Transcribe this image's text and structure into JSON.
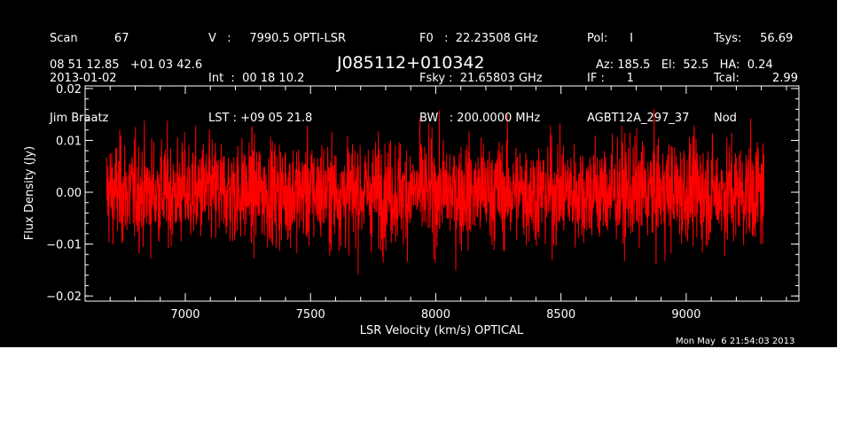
{
  "header": {
    "col1": [
      "Scan          67",
      "2013-01-02",
      "Jim Braatz"
    ],
    "col2": [
      "V   :     7990.5 OPTI-LSR",
      "Int  :  00 18 10.2",
      "LST : +09 05 21.8"
    ],
    "col3": [
      "F0   :  22.23508 GHz",
      "Fsky :  21.65803 GHz",
      "BW   : 200.0000 MHz"
    ],
    "col4": [
      "Pol:      I",
      "IF :      1",
      "AGBT12A_297_37"
    ],
    "col5": [
      "Tsys:     56.69",
      "Tcal:         2.99",
      "Nod"
    ],
    "coords": "08 51 12.85   +01 03 42.6",
    "source": "J085112+010342",
    "pointing": "Az: 185.5   El:  52.5   HA:  0.24"
  },
  "timestamp": "Mon May  6 21:54:03 2013",
  "colors": {
    "background": "#000000",
    "axes": "#ffffff",
    "trace": "#ff0000"
  },
  "chart_data": {
    "type": "line",
    "title": "J085112+010342",
    "xlabel": "LSR Velocity (km/s) OPTICAL",
    "ylabel": "Flux Density (Jy)",
    "xlim": [
      6600,
      9450
    ],
    "ylim": [
      -0.021,
      0.0205
    ],
    "x_ticks": [
      7000,
      7500,
      8000,
      8500,
      9000
    ],
    "x_tick_labels": [
      "7000",
      "7500",
      "8000",
      "8500",
      "9000"
    ],
    "y_ticks": [
      -0.02,
      -0.01,
      0.0,
      0.01,
      0.02
    ],
    "y_tick_labels": [
      "−0.02",
      "−0.01",
      "0.00",
      "0.01",
      "0.02"
    ],
    "grid": false,
    "series": [
      {
        "color": "#ff0000",
        "x_range": [
          6685,
          9310
        ],
        "noise_rms": 0.005,
        "mean": 0.0,
        "peak_max": 0.017,
        "peak_min": -0.019
      }
    ]
  }
}
